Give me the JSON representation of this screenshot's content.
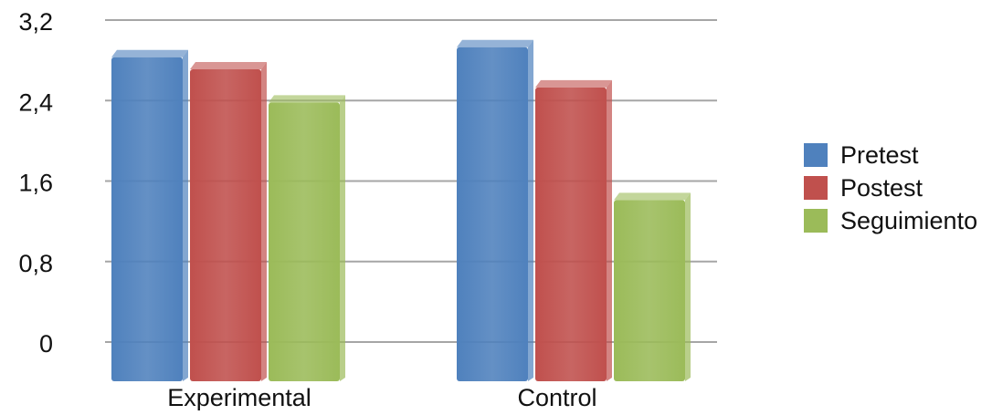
{
  "chart_data": {
    "type": "bar",
    "categories": [
      "Experimental",
      "Control"
    ],
    "series": [
      {
        "name": "Pretest",
        "values": [
          2.95,
          3.05
        ],
        "color": "#4f81bd"
      },
      {
        "name": "Postest",
        "values": [
          2.83,
          2.65
        ],
        "color": "#c0504d"
      },
      {
        "name": "Seguimiento",
        "values": [
          2.5,
          1.53
        ],
        "color": "#9bbb59"
      }
    ],
    "yticks": [
      "0",
      "0,8",
      "1,6",
      "2,4",
      "3,2"
    ],
    "ylim": [
      0,
      3.2
    ],
    "grid": true,
    "legend_position": "right",
    "title": "",
    "xlabel": "",
    "ylabel": ""
  }
}
